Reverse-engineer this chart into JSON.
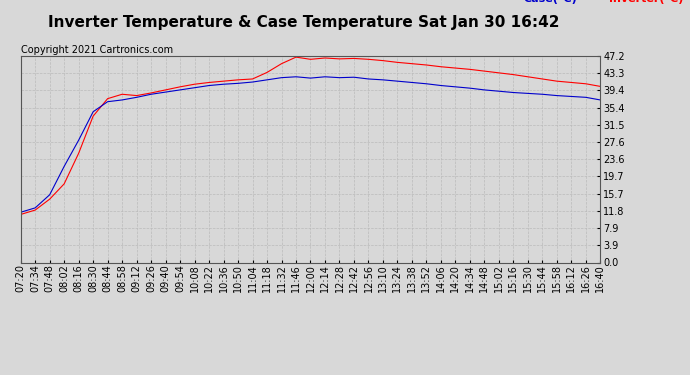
{
  "title": "Inverter Temperature & Case Temperature Sat Jan 30 16:42",
  "copyright": "Copyright 2021 Cartronics.com",
  "legend_case": "Case(°C)",
  "legend_inverter": "Inverter(°C)",
  "ylabel_ticks": [
    0.0,
    3.9,
    7.9,
    11.8,
    15.7,
    19.7,
    23.6,
    27.6,
    31.5,
    35.4,
    39.4,
    43.3,
    47.2
  ],
  "ymin": 0.0,
  "ymax": 47.2,
  "background_color": "#d8d8d8",
  "plot_bg_color": "#d8d8d8",
  "grid_color": "#bbbbbb",
  "case_color": "#0000cc",
  "inverter_color": "#ff0000",
  "title_fontsize": 11,
  "tick_fontsize": 7,
  "copyright_fontsize": 7,
  "legend_fontsize": 8,
  "x_labels": [
    "07:20",
    "07:34",
    "07:48",
    "08:02",
    "08:16",
    "08:30",
    "08:44",
    "08:58",
    "09:12",
    "09:26",
    "09:40",
    "09:54",
    "10:08",
    "10:22",
    "10:36",
    "10:50",
    "11:04",
    "11:18",
    "11:32",
    "11:46",
    "12:00",
    "12:14",
    "12:28",
    "12:42",
    "12:56",
    "13:10",
    "13:24",
    "13:38",
    "13:52",
    "14:06",
    "14:20",
    "14:34",
    "14:48",
    "15:02",
    "15:16",
    "15:30",
    "15:44",
    "15:58",
    "16:12",
    "16:26",
    "16:40"
  ],
  "inverter_values": [
    11.0,
    12.0,
    14.5,
    18.0,
    25.0,
    33.5,
    37.5,
    38.5,
    38.2,
    38.8,
    39.5,
    40.2,
    40.8,
    41.2,
    41.5,
    41.8,
    42.0,
    43.5,
    45.5,
    47.0,
    46.5,
    46.8,
    46.6,
    46.7,
    46.5,
    46.2,
    45.8,
    45.5,
    45.2,
    44.8,
    44.5,
    44.2,
    43.8,
    43.4,
    43.0,
    42.5,
    42.0,
    41.5,
    41.2,
    40.9,
    40.3
  ],
  "case_values": [
    11.5,
    12.5,
    15.5,
    22.0,
    28.0,
    34.5,
    36.8,
    37.2,
    37.8,
    38.5,
    39.0,
    39.5,
    40.0,
    40.5,
    40.8,
    41.0,
    41.3,
    41.8,
    42.3,
    42.5,
    42.2,
    42.5,
    42.3,
    42.4,
    42.0,
    41.8,
    41.5,
    41.2,
    40.9,
    40.5,
    40.2,
    39.9,
    39.5,
    39.2,
    38.9,
    38.7,
    38.5,
    38.2,
    38.0,
    37.8,
    37.2
  ]
}
